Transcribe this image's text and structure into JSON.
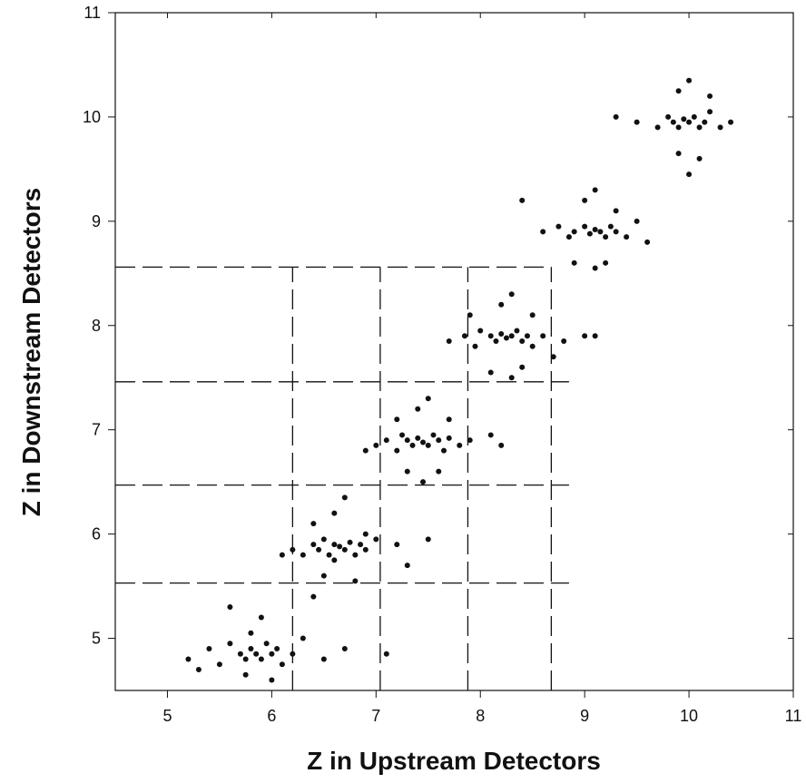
{
  "chart_data": {
    "type": "scatter",
    "x_label": "Z in Upstream Detectors",
    "y_label": "Z in Downstream Detectors",
    "xlim": [
      4.5,
      11
    ],
    "ylim": [
      4.5,
      11
    ],
    "xticks": [
      5,
      6,
      7,
      8,
      9,
      10,
      11
    ],
    "yticks": [
      5,
      6,
      7,
      8,
      9,
      10,
      11
    ],
    "color": "#111111",
    "hlines": [
      {
        "y": 8.56,
        "xmax": 8.68
      },
      {
        "y": 7.46,
        "xmax": 8.85
      },
      {
        "y": 6.47,
        "xmax": 8.85
      },
      {
        "y": 5.53,
        "xmax": 8.85
      }
    ],
    "vlines": [
      {
        "x": 6.2,
        "ymax": 8.56
      },
      {
        "x": 7.04,
        "ymax": 8.56
      },
      {
        "x": 7.88,
        "ymax": 8.56
      },
      {
        "x": 8.68,
        "ymax": 8.56
      }
    ],
    "x": [
      5.2,
      5.4,
      5.5,
      5.6,
      5.7,
      5.75,
      5.8,
      5.85,
      5.9,
      5.95,
      6.0,
      6.05,
      6.1,
      6.2,
      6.3,
      6.5,
      6.7,
      7.1,
      5.6,
      5.9,
      6.0,
      5.8,
      6.4,
      5.3,
      5.75,
      6.2,
      6.3,
      6.4,
      6.45,
      6.5,
      6.55,
      6.6,
      6.65,
      6.7,
      6.75,
      6.8,
      6.85,
      6.9,
      7.0,
      7.2,
      7.5,
      6.6,
      6.7,
      6.5,
      6.8,
      6.4,
      6.9,
      7.3,
      6.1,
      6.6,
      7.0,
      7.1,
      7.2,
      7.25,
      7.3,
      7.35,
      7.4,
      7.45,
      7.5,
      7.55,
      7.6,
      7.65,
      7.7,
      7.8,
      7.9,
      8.1,
      7.4,
      7.5,
      7.3,
      7.6,
      7.2,
      7.7,
      6.9,
      8.2,
      7.45,
      7.7,
      7.85,
      7.95,
      8.0,
      8.1,
      8.15,
      8.2,
      8.25,
      8.3,
      8.35,
      8.4,
      8.45,
      8.5,
      8.6,
      8.8,
      9.0,
      8.3,
      8.2,
      8.4,
      8.1,
      8.5,
      7.9,
      8.7,
      8.3,
      9.1,
      8.6,
      8.75,
      8.85,
      8.9,
      9.0,
      9.05,
      9.1,
      9.15,
      9.2,
      9.25,
      9.3,
      9.4,
      9.6,
      9.1,
      9.0,
      9.2,
      8.9,
      9.3,
      9.1,
      8.4,
      9.5,
      9.5,
      9.7,
      9.8,
      9.85,
      9.9,
      9.95,
      10.0,
      10.05,
      10.1,
      10.15,
      10.2,
      10.3,
      10.4,
      10.0,
      9.9,
      10.1,
      9.9,
      10.2,
      10.0,
      9.3
    ],
    "y": [
      4.8,
      4.9,
      4.75,
      4.95,
      4.85,
      4.8,
      4.9,
      4.85,
      4.8,
      4.95,
      4.85,
      4.9,
      4.75,
      4.85,
      5.0,
      4.8,
      4.9,
      4.85,
      5.3,
      5.2,
      4.6,
      5.05,
      5.4,
      4.7,
      4.65,
      5.85,
      5.8,
      5.9,
      5.85,
      5.95,
      5.8,
      5.9,
      5.88,
      5.85,
      5.92,
      5.8,
      5.9,
      5.85,
      5.95,
      5.9,
      5.95,
      6.2,
      6.35,
      5.6,
      5.55,
      6.1,
      6.0,
      5.7,
      5.8,
      5.75,
      6.85,
      6.9,
      6.8,
      6.95,
      6.9,
      6.85,
      6.92,
      6.88,
      6.85,
      6.95,
      6.9,
      6.8,
      6.92,
      6.85,
      6.9,
      6.95,
      7.2,
      7.3,
      6.6,
      6.6,
      7.1,
      7.1,
      6.8,
      6.85,
      6.5,
      7.85,
      7.9,
      7.8,
      7.95,
      7.9,
      7.85,
      7.92,
      7.88,
      7.9,
      7.95,
      7.85,
      7.9,
      7.8,
      7.9,
      7.85,
      7.9,
      8.3,
      8.2,
      7.6,
      7.55,
      8.1,
      8.1,
      7.7,
      7.5,
      7.9,
      8.9,
      8.95,
      8.85,
      8.9,
      8.95,
      8.88,
      8.92,
      8.9,
      8.85,
      8.95,
      8.9,
      8.85,
      8.8,
      9.3,
      9.2,
      8.6,
      8.6,
      9.1,
      8.55,
      9.2,
      9.0,
      9.95,
      9.9,
      10.0,
      9.95,
      9.9,
      9.98,
      9.95,
      10.0,
      9.9,
      9.95,
      10.05,
      9.9,
      9.95,
      10.35,
      10.25,
      9.6,
      9.65,
      10.2,
      9.45,
      10.0
    ]
  }
}
